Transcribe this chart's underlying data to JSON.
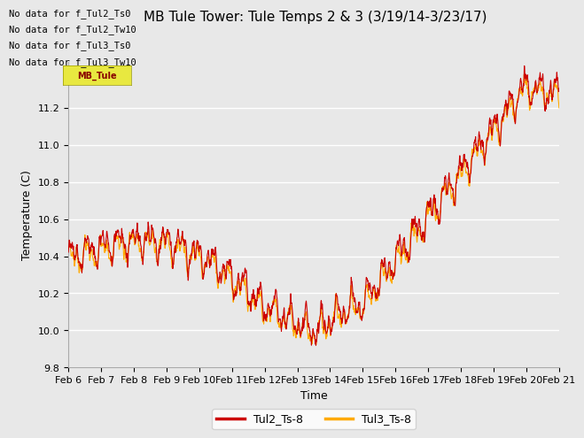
{
  "title": "MB Tule Tower: Tule Temps 2 & 3 (3/19/14-3/23/17)",
  "xlabel": "Time",
  "ylabel": "Temperature (C)",
  "ylim": [
    9.8,
    11.45
  ],
  "xlim_days": [
    0,
    15
  ],
  "series": [
    {
      "label": "Tul2_Ts-8",
      "color": "#cc0000"
    },
    {
      "label": "Tul3_Ts-8",
      "color": "#ffaa00"
    }
  ],
  "xtick_labels": [
    "Feb 6",
    "Feb 7",
    "Feb 8",
    "Feb 9",
    "Feb 10",
    "Feb 11",
    "Feb 12",
    "Feb 13",
    "Feb 14",
    "Feb 15",
    "Feb 16",
    "Feb 17",
    "Feb 18",
    "Feb 19",
    "Feb 20",
    "Feb 21"
  ],
  "no_data_texts": [
    "No data for f_Tul2_Ts0",
    "No data for f_Tul2_Tw10",
    "No data for f_Tul3_Ts0",
    "No data for f_Tul3_Tw10"
  ],
  "bg_color": "#e8e8e8",
  "plot_bg_color": "#e8e8e8",
  "grid_color": "#ffffff",
  "title_fontsize": 11,
  "label_fontsize": 9,
  "tick_fontsize": 8
}
